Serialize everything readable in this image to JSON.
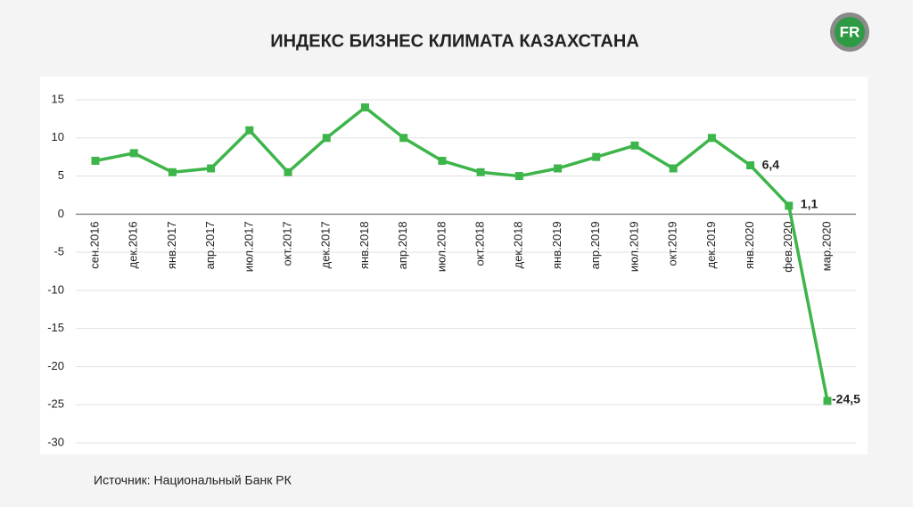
{
  "logo": "FR",
  "source": "Источник: Национальный Банк РК",
  "chart_data": {
    "type": "line",
    "title": "ИНДЕКС БИЗНЕС КЛИМАТА КАЗАХСТАНА",
    "categories": [
      "сен.2016",
      "дек.2016",
      "янв.2017",
      "апр.2017",
      "июл.2017",
      "окт.2017",
      "дек.2017",
      "янв.2018",
      "апр.2018",
      "июл.2018",
      "окт.2018",
      "дек.2018",
      "янв.2019",
      "апр.2019",
      "июл.2019",
      "окт.2019",
      "дек.2019",
      "янв.2020",
      "фев.2020",
      "мар.2020"
    ],
    "values": [
      7,
      8,
      5.5,
      6,
      11,
      5.5,
      10,
      14,
      10,
      7,
      5.5,
      5,
      6,
      7.5,
      9,
      6,
      10,
      6.4,
      1.1,
      -24.5
    ],
    "value_labels": [
      null,
      null,
      null,
      null,
      null,
      null,
      null,
      null,
      null,
      null,
      null,
      null,
      null,
      null,
      null,
      null,
      null,
      "6,4",
      "1,1",
      "-24,5"
    ],
    "color": "#3db54a",
    "ylim": [
      -30,
      15
    ],
    "yticks": [
      15,
      10,
      5,
      0,
      -5,
      -10,
      -15,
      -20,
      -25,
      -30
    ],
    "grid": true
  }
}
